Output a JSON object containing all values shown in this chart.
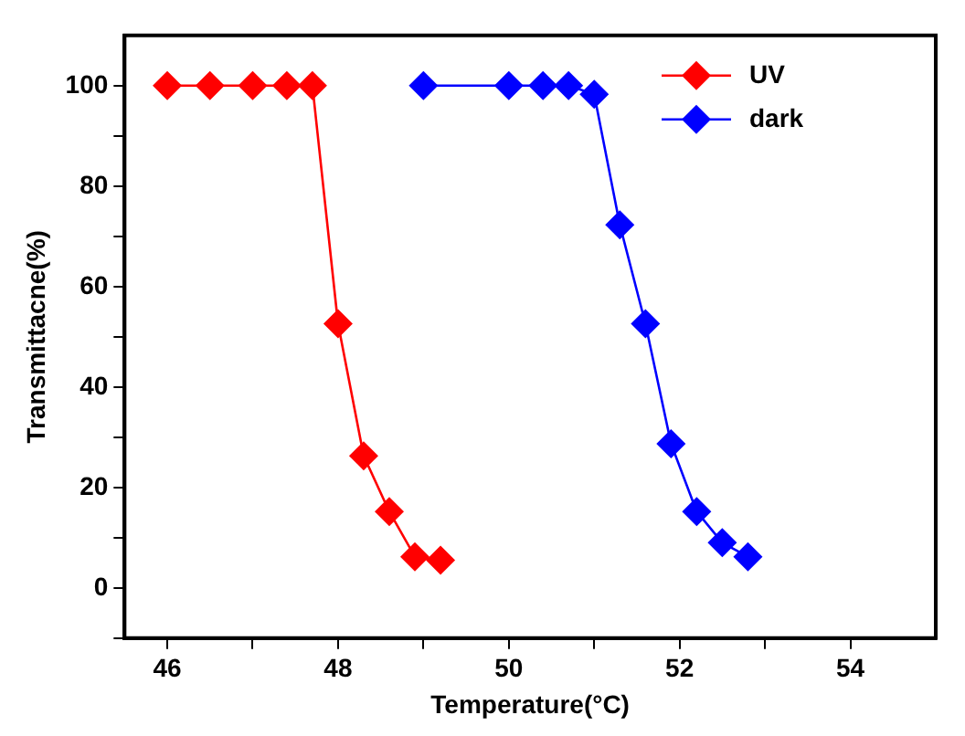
{
  "chart_data": {
    "type": "line",
    "xlabel": "Temperature(°C)",
    "ylabel": "Transmittacne(%)",
    "series": [
      {
        "name": "UV",
        "color": "#ff0000",
        "x": [
          46,
          46.5,
          47,
          47.4,
          47.7,
          48,
          48.3,
          48.6,
          48.9,
          49.2
        ],
        "values": [
          100,
          100,
          100,
          100,
          100,
          52.6,
          26.3,
          15.2,
          6.2,
          5.5
        ]
      },
      {
        "name": "dark",
        "color": "#0000ff",
        "x": [
          49,
          50,
          50.4,
          50.7,
          51,
          51.3,
          51.6,
          51.9,
          52.2,
          52.5,
          52.8
        ],
        "values": [
          100,
          100,
          100,
          100,
          98.3,
          72.3,
          52.6,
          28.7,
          15.2,
          9,
          6.2
        ]
      }
    ],
    "xlim": [
      45.5,
      55
    ],
    "xticks": [
      46,
      {
        "value": 47,
        "label": null
      },
      48,
      {
        "value": 49,
        "label": null
      },
      50,
      {
        "value": 51,
        "label": null
      },
      52,
      {
        "value": 53,
        "label": null
      },
      54
    ],
    "ylim": [
      -10,
      110
    ],
    "yticks": [
      {
        "value": -10,
        "label": null
      },
      0,
      {
        "value": 10,
        "label": null
      },
      20,
      {
        "value": 30,
        "label": null
      },
      40,
      {
        "value": 50,
        "label": null
      },
      60,
      {
        "value": 70,
        "label": null
      },
      80,
      {
        "value": 90,
        "label": null
      },
      100
    ],
    "grid": false,
    "legend": "top right",
    "marker": "diamond",
    "line_style": "solid"
  }
}
